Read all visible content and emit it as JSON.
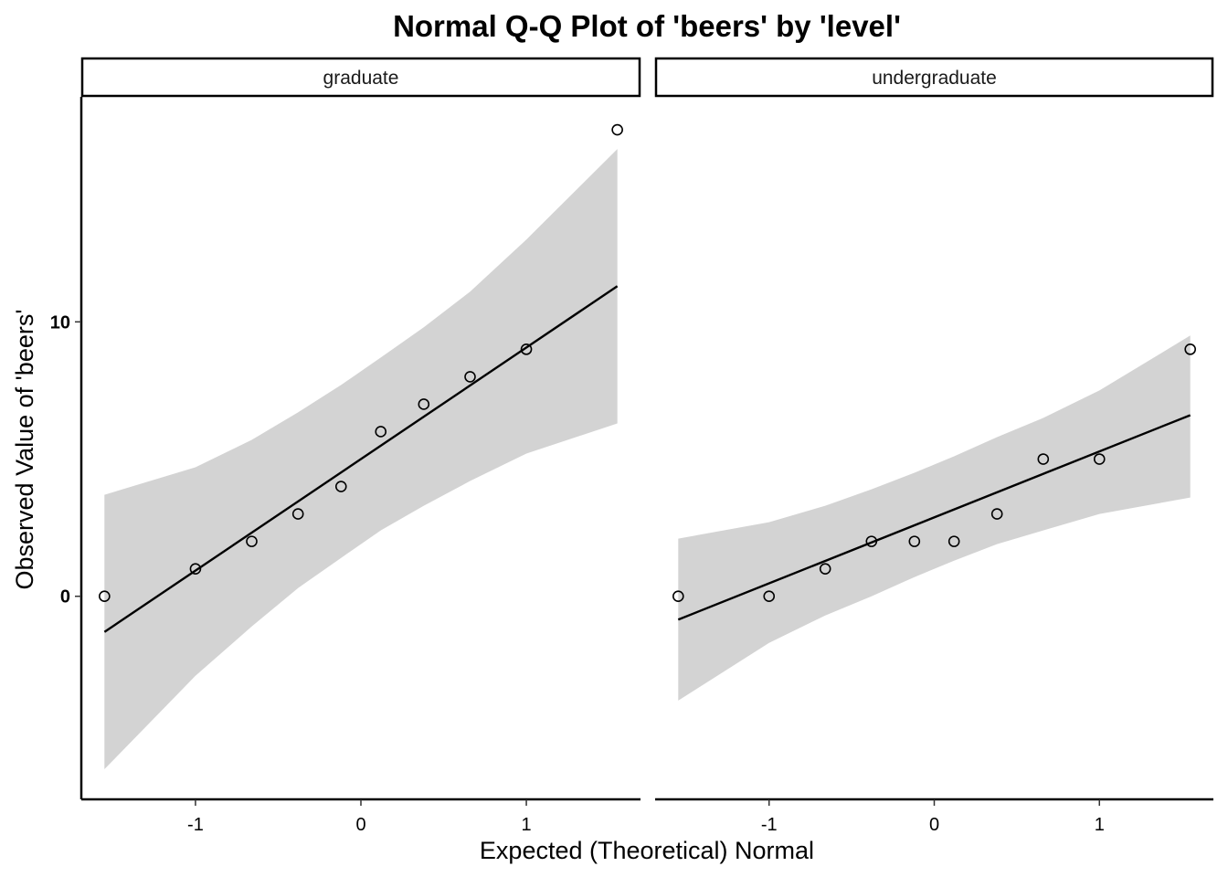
{
  "chart_data": {
    "type": "scatter",
    "title": "Normal Q-Q Plot of 'beers' by 'level'",
    "xlabel": "Expected (Theoretical) Normal",
    "ylabel": "Observed Value of 'beers'",
    "xlim": [
      -1.69,
      1.69
    ],
    "ylim": [
      -7.4,
      18.2
    ],
    "x_ticks": [
      -1,
      0,
      1
    ],
    "x_tick_labels": [
      "-1",
      "0",
      "1"
    ],
    "y_ticks": [
      0,
      10
    ],
    "y_tick_labels": [
      "0",
      "10"
    ],
    "grid": false,
    "colors": {
      "band": "#d3d3d3",
      "line": "#000000",
      "point_stroke": "#000000",
      "strip_border": "#000000"
    },
    "panels": [
      {
        "strip_label": "graduate",
        "points": {
          "x": [
            -1.55,
            -1.0,
            -0.66,
            -0.38,
            -0.12,
            0.12,
            0.38,
            0.66,
            1.0,
            1.55
          ],
          "y": [
            0,
            1,
            2,
            3,
            4,
            6,
            7,
            8,
            9,
            17
          ]
        },
        "reference_line": {
          "x": [
            -1.55,
            1.55
          ],
          "y": [
            -1.3,
            11.3
          ]
        },
        "band": {
          "x": [
            -1.55,
            -1.0,
            -0.66,
            -0.38,
            -0.12,
            0.12,
            0.38,
            0.66,
            1.0,
            1.55
          ],
          "lower": [
            -6.3,
            -2.9,
            -1.1,
            0.3,
            1.4,
            2.4,
            3.3,
            4.2,
            5.2,
            6.3
          ],
          "upper": [
            3.7,
            4.7,
            5.7,
            6.7,
            7.7,
            8.7,
            9.8,
            11.1,
            13.0,
            16.3
          ]
        }
      },
      {
        "strip_label": "undergraduate",
        "points": {
          "x": [
            -1.55,
            -1.0,
            -0.66,
            -0.38,
            -0.12,
            0.12,
            0.38,
            0.66,
            1.0,
            1.55
          ],
          "y": [
            0,
            0,
            1,
            2,
            2,
            2,
            3,
            5,
            5,
            9
          ]
        },
        "reference_line": {
          "x": [
            -1.55,
            1.55
          ],
          "y": [
            -0.85,
            6.6
          ]
        },
        "band": {
          "x": [
            -1.55,
            -1.0,
            -0.66,
            -0.38,
            -0.12,
            0.12,
            0.38,
            0.66,
            1.0,
            1.55
          ],
          "lower": [
            -3.8,
            -1.7,
            -0.7,
            0.0,
            0.7,
            1.3,
            1.9,
            2.4,
            3.0,
            3.6
          ],
          "upper": [
            2.1,
            2.7,
            3.3,
            3.9,
            4.5,
            5.1,
            5.8,
            6.5,
            7.5,
            9.5
          ]
        }
      }
    ]
  }
}
